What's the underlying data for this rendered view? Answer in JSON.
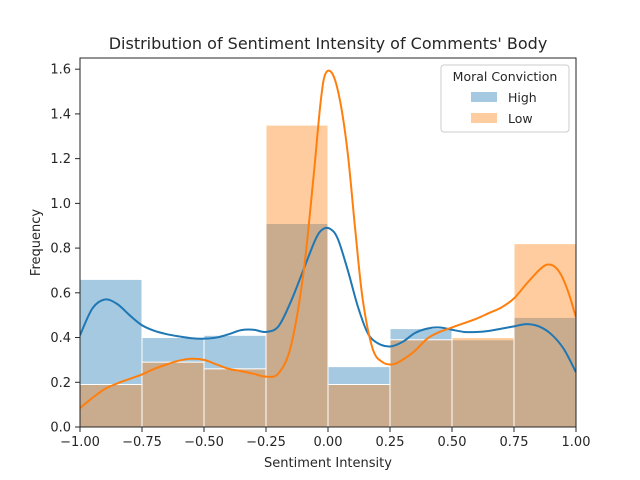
{
  "chart_data": {
    "type": "histogram",
    "title": "Distribution of  Sentiment Intensity of Comments' Body",
    "xlabel": "Sentiment Intensity",
    "ylabel": "Frequency",
    "xlim": [
      -1.0,
      1.0
    ],
    "ylim": [
      0.0,
      1.65
    ],
    "x_ticks": [
      -1.0,
      -0.75,
      -0.5,
      -0.25,
      0.0,
      0.25,
      0.5,
      0.75,
      1.0
    ],
    "x_tick_labels": [
      "−1.00",
      "−0.75",
      "−0.50",
      "−0.25",
      "0.00",
      "0.25",
      "0.50",
      "0.75",
      "1.00"
    ],
    "y_ticks": [
      0.0,
      0.2,
      0.4,
      0.6,
      0.8,
      1.0,
      1.2,
      1.4,
      1.6
    ],
    "y_tick_labels": [
      "0.0",
      "0.2",
      "0.4",
      "0.6",
      "0.8",
      "1.0",
      "1.2",
      "1.4",
      "1.6"
    ],
    "grid": false,
    "bin_edges": [
      -1.0,
      -0.75,
      -0.5,
      -0.25,
      0.0,
      0.25,
      0.5,
      0.75,
      1.0
    ],
    "legend": {
      "title": "Moral Conviction",
      "placement": "upper-right"
    },
    "series": [
      {
        "name": "High",
        "color": "#1f77b4",
        "fill": "#a5c8e1",
        "values": [
          0.66,
          0.4,
          0.41,
          0.91,
          0.27,
          0.44,
          0.39,
          0.49
        ],
        "kde": [
          [
            -1.0,
            0.41
          ],
          [
            -0.95,
            0.53
          ],
          [
            -0.9,
            0.57
          ],
          [
            -0.85,
            0.55
          ],
          [
            -0.8,
            0.5
          ],
          [
            -0.75,
            0.455
          ],
          [
            -0.7,
            0.43
          ],
          [
            -0.65,
            0.415
          ],
          [
            -0.6,
            0.405
          ],
          [
            -0.55,
            0.397
          ],
          [
            -0.5,
            0.395
          ],
          [
            -0.45,
            0.4
          ],
          [
            -0.4,
            0.415
          ],
          [
            -0.35,
            0.433
          ],
          [
            -0.3,
            0.435
          ],
          [
            -0.25,
            0.425
          ],
          [
            -0.2,
            0.45
          ],
          [
            -0.15,
            0.56
          ],
          [
            -0.1,
            0.7
          ],
          [
            -0.05,
            0.84
          ],
          [
            -0.02,
            0.885
          ],
          [
            0.01,
            0.885
          ],
          [
            0.04,
            0.84
          ],
          [
            0.08,
            0.7
          ],
          [
            0.12,
            0.54
          ],
          [
            0.16,
            0.42
          ],
          [
            0.2,
            0.375
          ],
          [
            0.25,
            0.36
          ],
          [
            0.3,
            0.38
          ],
          [
            0.35,
            0.42
          ],
          [
            0.4,
            0.44
          ],
          [
            0.45,
            0.445
          ],
          [
            0.5,
            0.435
          ],
          [
            0.55,
            0.425
          ],
          [
            0.6,
            0.425
          ],
          [
            0.65,
            0.43
          ],
          [
            0.7,
            0.44
          ],
          [
            0.75,
            0.45
          ],
          [
            0.8,
            0.46
          ],
          [
            0.85,
            0.45
          ],
          [
            0.9,
            0.415
          ],
          [
            0.95,
            0.35
          ],
          [
            1.0,
            0.245
          ]
        ]
      },
      {
        "name": "Low",
        "color": "#ff7f0e",
        "fill": "#ffc59b",
        "values": [
          0.19,
          0.29,
          0.26,
          1.35,
          0.19,
          0.39,
          0.4,
          0.82
        ],
        "kde": [
          [
            -1.0,
            0.085
          ],
          [
            -0.95,
            0.13
          ],
          [
            -0.9,
            0.17
          ],
          [
            -0.85,
            0.195
          ],
          [
            -0.8,
            0.215
          ],
          [
            -0.75,
            0.235
          ],
          [
            -0.7,
            0.26
          ],
          [
            -0.65,
            0.28
          ],
          [
            -0.6,
            0.297
          ],
          [
            -0.55,
            0.305
          ],
          [
            -0.5,
            0.3
          ],
          [
            -0.45,
            0.28
          ],
          [
            -0.4,
            0.26
          ],
          [
            -0.35,
            0.25
          ],
          [
            -0.3,
            0.238
          ],
          [
            -0.25,
            0.225
          ],
          [
            -0.2,
            0.24
          ],
          [
            -0.15,
            0.36
          ],
          [
            -0.1,
            0.68
          ],
          [
            -0.06,
            1.1
          ],
          [
            -0.03,
            1.45
          ],
          [
            -0.01,
            1.58
          ],
          [
            0.02,
            1.575
          ],
          [
            0.05,
            1.45
          ],
          [
            0.08,
            1.22
          ],
          [
            0.11,
            0.88
          ],
          [
            0.14,
            0.57
          ],
          [
            0.18,
            0.35
          ],
          [
            0.22,
            0.29
          ],
          [
            0.26,
            0.28
          ],
          [
            0.3,
            0.3
          ],
          [
            0.35,
            0.34
          ],
          [
            0.4,
            0.395
          ],
          [
            0.45,
            0.425
          ],
          [
            0.5,
            0.445
          ],
          [
            0.55,
            0.465
          ],
          [
            0.6,
            0.485
          ],
          [
            0.65,
            0.51
          ],
          [
            0.7,
            0.535
          ],
          [
            0.75,
            0.575
          ],
          [
            0.8,
            0.64
          ],
          [
            0.85,
            0.7
          ],
          [
            0.88,
            0.725
          ],
          [
            0.91,
            0.72
          ],
          [
            0.94,
            0.68
          ],
          [
            0.97,
            0.6
          ],
          [
            1.0,
            0.49
          ]
        ]
      }
    ]
  }
}
